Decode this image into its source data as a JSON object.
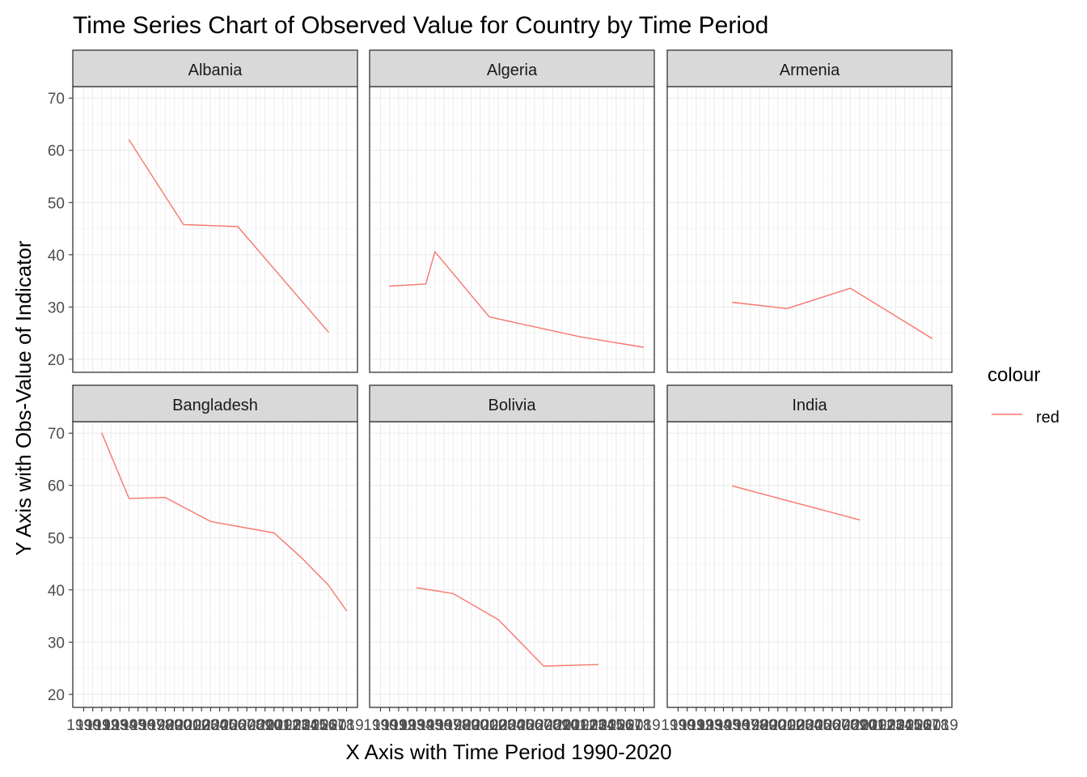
{
  "chart_data": {
    "type": "line",
    "title": "Time Series Chart of Observed Value for Country by Time Period",
    "xlabel": "X Axis with Time Period 1990-2020",
    "ylabel": "Y Axis with Obs-Value of Indicator",
    "ylim": [
      20,
      72
    ],
    "xlim": [
      1990,
      2019
    ],
    "y_ticks": [
      20,
      30,
      40,
      50,
      60,
      70
    ],
    "x_ticks": [
      1990,
      1991,
      1992,
      1993,
      1994,
      1995,
      1996,
      1997,
      1998,
      1999,
      2000,
      2001,
      2002,
      2003,
      2004,
      2005,
      2006,
      2007,
      2008,
      2009,
      2010,
      2011,
      2012,
      2013,
      2014,
      2015,
      2016,
      2017,
      2018,
      2019
    ],
    "grid": true,
    "line_color": "#F8766D",
    "legend": {
      "title": "colour",
      "position": "right",
      "entries": [
        {
          "label": "red",
          "color": "#F8766D"
        }
      ]
    },
    "panels": [
      {
        "name": "Albania",
        "points": [
          [
            1995,
            62.0
          ],
          [
            2001,
            45.8
          ],
          [
            2007,
            45.4
          ],
          [
            2017,
            25.2
          ]
        ]
      },
      {
        "name": "Algeria",
        "points": [
          [
            1991,
            34.0
          ],
          [
            1995,
            34.4
          ],
          [
            1996,
            40.6
          ],
          [
            2002,
            28.1
          ],
          [
            2012,
            24.3
          ],
          [
            2019,
            22.3
          ]
        ]
      },
      {
        "name": "Armenia",
        "points": [
          [
            1996,
            30.9
          ],
          [
            2002,
            29.7
          ],
          [
            2009,
            33.6
          ],
          [
            2018,
            24.0
          ]
        ]
      },
      {
        "name": "Bangladesh",
        "points": [
          [
            1992,
            70.0
          ],
          [
            1995,
            57.5
          ],
          [
            1997,
            57.6
          ],
          [
            1999,
            57.7
          ],
          [
            2004,
            53.1
          ],
          [
            2011,
            50.9
          ],
          [
            2014,
            46.2
          ],
          [
            2017,
            40.9
          ],
          [
            2019,
            36.0
          ]
        ]
      },
      {
        "name": "Bolivia",
        "points": [
          [
            1994,
            40.4
          ],
          [
            1998,
            39.3
          ],
          [
            2003,
            34.3
          ],
          [
            2008,
            25.4
          ],
          [
            2014,
            25.7
          ]
        ]
      },
      {
        "name": "India",
        "points": [
          [
            1996,
            59.9
          ],
          [
            2010,
            53.4
          ]
        ]
      }
    ]
  }
}
